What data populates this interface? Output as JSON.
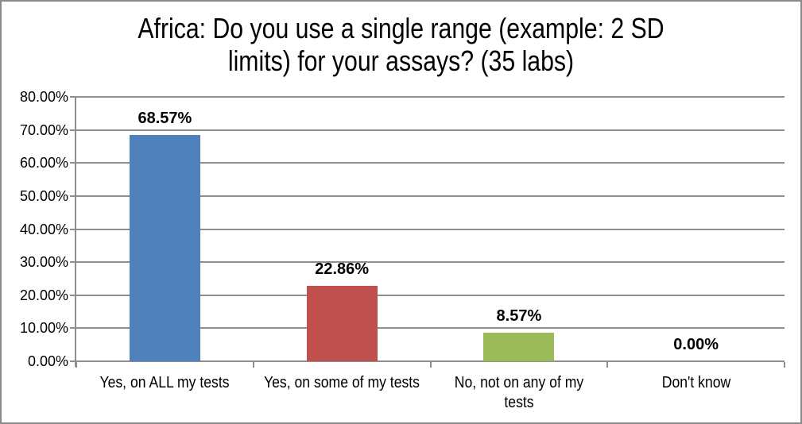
{
  "title": {
    "text": "Africa: Do you use a single range (example: 2 SD limits) for your assays? (35 labs)",
    "lines": [
      "Africa: Do you use a single range (example: 2 SD",
      "limits) for your assays? (35 labs)"
    ]
  },
  "chart_data": {
    "type": "bar",
    "title": "Africa: Do you use a single range (example: 2 SD limits) for your assays? (35 labs)",
    "categories": [
      "Yes, on ALL my tests",
      "Yes, on some of my tests",
      "No, not on any of my tests",
      "Don't know"
    ],
    "values": [
      68.57,
      22.86,
      8.57,
      0
    ],
    "data_labels": [
      "68.57%",
      "22.86%",
      "8.57%",
      "0.00%"
    ],
    "bar_colors": [
      "#4F81BD",
      "#C0504D",
      "#9BBB59",
      null
    ],
    "category_label_lines": [
      [
        "Yes, on ALL my tests"
      ],
      [
        "Yes, on some of my tests"
      ],
      [
        "No, not on any of my",
        "tests"
      ],
      [
        "Don't know"
      ]
    ],
    "xlabel": "",
    "ylabel": "",
    "ylim": [
      0,
      80
    ],
    "ytick_values": [
      0,
      10,
      20,
      30,
      40,
      50,
      60,
      70,
      80
    ],
    "ytick_labels": [
      "0.00%",
      "10.00%",
      "20.00%",
      "30.00%",
      "40.00%",
      "50.00%",
      "60.00%",
      "70.00%",
      "80.00%"
    ],
    "grid": true,
    "legend": false,
    "colors": {
      "grid": "#8E8E8E",
      "axis": "#8E8E8E",
      "text": "#000000",
      "background": "#FFFFFF",
      "border": "#8A8A8A"
    }
  }
}
